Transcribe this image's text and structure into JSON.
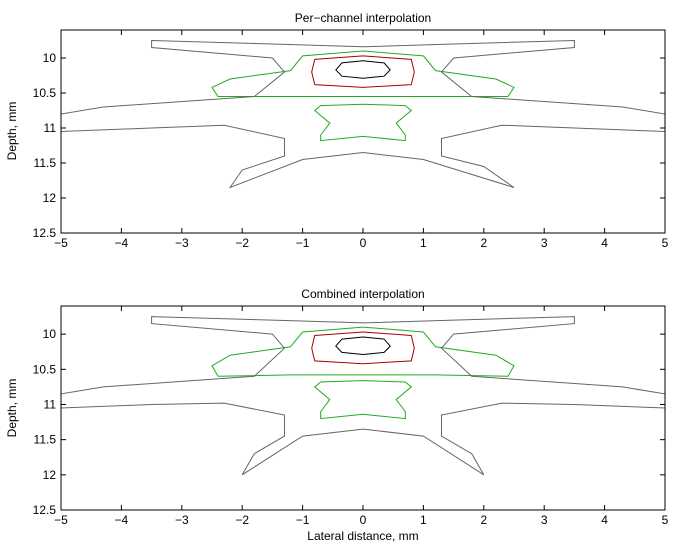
{
  "chart_data": [
    {
      "type": "contour",
      "title": "Per−channel interpolation",
      "ylabel": "Depth, mm",
      "xlabel": "",
      "xlim": [
        -5,
        5
      ],
      "ylim": [
        12.5,
        9.6
      ],
      "y_reversed": true,
      "xticks": [
        -5,
        -4,
        -3,
        -2,
        -1,
        0,
        1,
        2,
        3,
        4,
        5
      ],
      "xtick_labels": [
        "−5",
        "−4",
        "−3",
        "−2",
        "−1",
        "0",
        "1",
        "2",
        "3",
        "4",
        "5"
      ],
      "yticks": [
        10,
        10.5,
        11,
        11.5,
        12,
        12.5
      ],
      "ytick_labels": [
        "10",
        "10.5",
        "11",
        "11.5",
        "12",
        "12.5"
      ],
      "grid": false,
      "contours": [
        {
          "color": "#000000",
          "points": [
            [
              -0.45,
              10.17
            ],
            [
              -0.35,
              10.07
            ],
            [
              0,
              10.04
            ],
            [
              0.35,
              10.07
            ],
            [
              0.45,
              10.17
            ],
            [
              0.35,
              10.26
            ],
            [
              0,
              10.29
            ],
            [
              -0.35,
              10.26
            ],
            [
              -0.45,
              10.17
            ]
          ]
        },
        {
          "color": "#aa0000",
          "points": [
            [
              -0.85,
              10.2
            ],
            [
              -0.8,
              10.02
            ],
            [
              0,
              9.97
            ],
            [
              0.8,
              10.02
            ],
            [
              0.85,
              10.2
            ],
            [
              0.8,
              10.38
            ],
            [
              0,
              10.42
            ],
            [
              -0.8,
              10.38
            ],
            [
              -0.85,
              10.2
            ]
          ]
        },
        {
          "color": "#22aa22",
          "points": [
            [
              -2.5,
              10.42
            ],
            [
              -2.2,
              10.3
            ],
            [
              -1.2,
              10.18
            ],
            [
              -1.0,
              9.97
            ],
            [
              0,
              9.9
            ],
            [
              1.0,
              9.97
            ],
            [
              1.2,
              10.18
            ],
            [
              2.2,
              10.3
            ],
            [
              2.5,
              10.42
            ],
            [
              2.4,
              10.55
            ],
            [
              1.2,
              10.55
            ],
            [
              0,
              10.55
            ],
            [
              -1.2,
              10.55
            ],
            [
              -2.4,
              10.55
            ],
            [
              -2.5,
              10.42
            ]
          ]
        },
        {
          "color": "#22aa22",
          "points": [
            [
              -0.8,
              10.75
            ],
            [
              -0.7,
              10.68
            ],
            [
              0,
              10.66
            ],
            [
              0.7,
              10.68
            ],
            [
              0.8,
              10.75
            ],
            [
              0.55,
              10.93
            ],
            [
              0.7,
              11.1
            ],
            [
              0.7,
              11.18
            ],
            [
              0,
              11.12
            ],
            [
              -0.7,
              11.18
            ],
            [
              -0.7,
              11.1
            ],
            [
              -0.55,
              10.93
            ],
            [
              -0.8,
              10.75
            ]
          ]
        },
        {
          "color": "#666666",
          "points": [
            [
              -3.5,
              9.85
            ],
            [
              -3.5,
              9.75
            ],
            [
              -1.5,
              9.8
            ],
            [
              0,
              9.84
            ],
            [
              1.5,
              9.8
            ],
            [
              3.5,
              9.75
            ],
            [
              3.5,
              9.85
            ],
            [
              1.5,
              10.0
            ],
            [
              1.3,
              10.2
            ],
            [
              1.8,
              10.55
            ],
            [
              4.3,
              10.7
            ],
            [
              5,
              10.8
            ],
            [
              5,
              11.05
            ],
            [
              3.5,
              11.0
            ],
            [
              2.3,
              10.96
            ],
            [
              1.3,
              11.15
            ],
            [
              1.3,
              11.4
            ],
            [
              2.0,
              11.55
            ],
            [
              2.5,
              11.85
            ],
            [
              1.0,
              11.45
            ],
            [
              0,
              11.35
            ],
            [
              -1.0,
              11.45
            ],
            [
              -2.2,
              11.85
            ],
            [
              -2.0,
              11.6
            ],
            [
              -1.3,
              11.4
            ],
            [
              -1.3,
              11.15
            ],
            [
              -2.3,
              10.96
            ],
            [
              -3.5,
              11.0
            ],
            [
              -5,
              11.05
            ],
            [
              -5,
              10.8
            ],
            [
              -4.3,
              10.7
            ],
            [
              -1.8,
              10.55
            ],
            [
              -1.3,
              10.2
            ],
            [
              -1.5,
              10.0
            ],
            [
              -3.5,
              9.85
            ]
          ]
        }
      ]
    },
    {
      "type": "contour",
      "title": "Combined interpolation",
      "ylabel": "Depth, mm",
      "xlabel": "Lateral distance, mm",
      "xlim": [
        -5,
        5
      ],
      "ylim": [
        12.5,
        9.6
      ],
      "y_reversed": true,
      "xticks": [
        -5,
        -4,
        -3,
        -2,
        -1,
        0,
        1,
        2,
        3,
        4,
        5
      ],
      "xtick_labels": [
        "−5",
        "−4",
        "−3",
        "−2",
        "−1",
        "0",
        "1",
        "2",
        "3",
        "4",
        "5"
      ],
      "yticks": [
        10,
        10.5,
        11,
        11.5,
        12,
        12.5
      ],
      "ytick_labels": [
        "10",
        "10.5",
        "11",
        "11.5",
        "12",
        "12.5"
      ],
      "grid": false,
      "contours": [
        {
          "color": "#000000",
          "points": [
            [
              -0.45,
              10.17
            ],
            [
              -0.35,
              10.07
            ],
            [
              0,
              10.04
            ],
            [
              0.35,
              10.07
            ],
            [
              0.45,
              10.17
            ],
            [
              0.35,
              10.26
            ],
            [
              0,
              10.29
            ],
            [
              -0.35,
              10.26
            ],
            [
              -0.45,
              10.17
            ]
          ]
        },
        {
          "color": "#aa0000",
          "points": [
            [
              -0.85,
              10.2
            ],
            [
              -0.8,
              10.02
            ],
            [
              0,
              9.97
            ],
            [
              0.8,
              10.02
            ],
            [
              0.85,
              10.2
            ],
            [
              0.8,
              10.38
            ],
            [
              0,
              10.42
            ],
            [
              -0.8,
              10.38
            ],
            [
              -0.85,
              10.2
            ]
          ]
        },
        {
          "color": "#22aa22",
          "points": [
            [
              -2.5,
              10.45
            ],
            [
              -2.2,
              10.3
            ],
            [
              -1.2,
              10.18
            ],
            [
              -1.0,
              9.97
            ],
            [
              0,
              9.9
            ],
            [
              1.0,
              9.97
            ],
            [
              1.2,
              10.18
            ],
            [
              2.2,
              10.3
            ],
            [
              2.5,
              10.45
            ],
            [
              2.4,
              10.6
            ],
            [
              1.2,
              10.58
            ],
            [
              0,
              10.58
            ],
            [
              -1.2,
              10.58
            ],
            [
              -2.4,
              10.6
            ],
            [
              -2.5,
              10.45
            ]
          ]
        },
        {
          "color": "#22aa22",
          "points": [
            [
              -0.8,
              10.75
            ],
            [
              -0.7,
              10.68
            ],
            [
              0,
              10.66
            ],
            [
              0.7,
              10.68
            ],
            [
              0.8,
              10.75
            ],
            [
              0.55,
              10.93
            ],
            [
              0.7,
              11.1
            ],
            [
              0.7,
              11.2
            ],
            [
              0,
              11.14
            ],
            [
              -0.7,
              11.2
            ],
            [
              -0.7,
              11.1
            ],
            [
              -0.55,
              10.93
            ],
            [
              -0.8,
              10.75
            ]
          ]
        },
        {
          "color": "#666666",
          "points": [
            [
              -3.5,
              9.85
            ],
            [
              -3.5,
              9.75
            ],
            [
              -1.5,
              9.8
            ],
            [
              0,
              9.84
            ],
            [
              1.5,
              9.8
            ],
            [
              3.5,
              9.75
            ],
            [
              3.5,
              9.85
            ],
            [
              1.5,
              10.0
            ],
            [
              1.3,
              10.2
            ],
            [
              1.8,
              10.6
            ],
            [
              4.3,
              10.75
            ],
            [
              5,
              10.85
            ],
            [
              5,
              11.05
            ],
            [
              3.5,
              11.0
            ],
            [
              2.3,
              10.98
            ],
            [
              1.3,
              11.15
            ],
            [
              1.3,
              11.45
            ],
            [
              1.8,
              11.7
            ],
            [
              2.0,
              12.0
            ],
            [
              1.0,
              11.45
            ],
            [
              0,
              11.35
            ],
            [
              -1.0,
              11.45
            ],
            [
              -2.0,
              12.0
            ],
            [
              -1.8,
              11.7
            ],
            [
              -1.3,
              11.45
            ],
            [
              -1.3,
              11.15
            ],
            [
              -2.3,
              10.98
            ],
            [
              -3.5,
              11.0
            ],
            [
              -5,
              11.05
            ],
            [
              -5,
              10.85
            ],
            [
              -4.3,
              10.75
            ],
            [
              -1.8,
              10.6
            ],
            [
              -1.3,
              10.2
            ],
            [
              -1.5,
              10.0
            ],
            [
              -3.5,
              9.85
            ]
          ]
        }
      ]
    }
  ]
}
